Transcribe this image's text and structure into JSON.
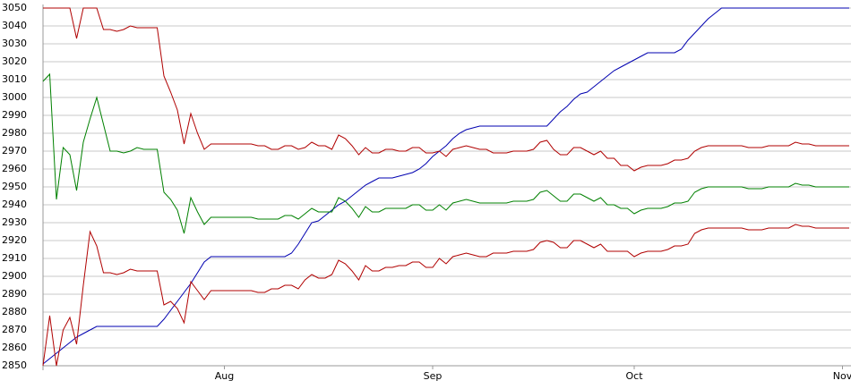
{
  "chart_data": {
    "type": "line",
    "categories": [
      null,
      null,
      null,
      null,
      null,
      null,
      null,
      null,
      null,
      null,
      null,
      null,
      null,
      null,
      null,
      null,
      null,
      null,
      null,
      null,
      null,
      null,
      null,
      null,
      null,
      null,
      null,
      "Aug",
      null,
      null,
      null,
      null,
      null,
      null,
      null,
      null,
      null,
      null,
      null,
      null,
      null,
      null,
      null,
      null,
      null,
      null,
      null,
      null,
      null,
      null,
      null,
      null,
      null,
      null,
      null,
      null,
      null,
      null,
      "Sep",
      null,
      null,
      null,
      null,
      null,
      null,
      null,
      null,
      null,
      null,
      null,
      null,
      null,
      null,
      null,
      null,
      null,
      null,
      null,
      null,
      null,
      null,
      null,
      null,
      null,
      null,
      null,
      null,
      null,
      "Oct",
      null,
      null,
      null,
      null,
      null,
      null,
      null,
      null,
      null,
      null,
      null,
      null,
      null,
      null,
      null,
      null,
      null,
      null,
      null,
      null,
      null,
      null,
      null,
      null,
      null,
      null,
      null,
      null,
      null,
      null,
      "Nov",
      null
    ],
    "series": [
      {
        "color": "#0000b0",
        "values": [
          2851,
          2854,
          2857,
          2860,
          2863,
          2866,
          2868,
          2870,
          2872,
          2872,
          2872,
          2872,
          2872,
          2872,
          2872,
          2872,
          2872,
          2872,
          2876,
          2881,
          2886,
          2891,
          2896,
          2902,
          2908,
          2911,
          2911,
          2911,
          2911,
          2911,
          2911,
          2911,
          2911,
          2911,
          2911,
          2911,
          2911,
          2913,
          2918,
          2924,
          2930,
          2931,
          2934,
          2937,
          2940,
          2942,
          2945,
          2948,
          2951,
          2953,
          2955,
          2955,
          2955,
          2956,
          2957,
          2958,
          2960,
          2963,
          2967,
          2970,
          2973,
          2977,
          2980,
          2982,
          2983,
          2984,
          2984,
          2984,
          2984,
          2984,
          2984,
          2984,
          2984,
          2984,
          2984,
          2984,
          2988,
          2992,
          2995,
          2999,
          3002,
          3003,
          3006,
          3009,
          3012,
          3015,
          3017,
          3019,
          3021,
          3023,
          3025,
          3025,
          3025,
          3025,
          3025,
          3027,
          3032,
          3036,
          3040,
          3044,
          3047,
          3050,
          3050,
          3050,
          3050,
          3050,
          3050,
          3050,
          3050,
          3050,
          3050,
          3050,
          3050,
          3050,
          3050,
          3050,
          3050,
          3050,
          3050,
          3050,
          3050
        ]
      },
      {
        "color": "#b00000",
        "values": [
          3050,
          3050,
          3050,
          3050,
          3050,
          3033,
          3050,
          3050,
          3050,
          3038,
          3038,
          3037,
          3038,
          3040,
          3039,
          3039,
          3039,
          3039,
          3012,
          3003,
          2993,
          2974,
          2991,
          2980,
          2971,
          2974,
          2974,
          2974,
          2974,
          2974,
          2974,
          2974,
          2973,
          2973,
          2971,
          2971,
          2973,
          2973,
          2971,
          2972,
          2975,
          2973,
          2973,
          2971,
          2979,
          2977,
          2973,
          2968,
          2972,
          2969,
          2969,
          2971,
          2971,
          2970,
          2970,
          2972,
          2972,
          2969,
          2969,
          2970,
          2967,
          2971,
          2972,
          2973,
          2972,
          2971,
          2971,
          2969,
          2969,
          2969,
          2970,
          2970,
          2970,
          2971,
          2975,
          2976,
          2971,
          2968,
          2968,
          2972,
          2972,
          2970,
          2968,
          2970,
          2966,
          2966,
          2962,
          2962,
          2959,
          2961,
          2962,
          2962,
          2962,
          2963,
          2965,
          2965,
          2966,
          2970,
          2972,
          2973,
          2973,
          2973,
          2973,
          2973,
          2973,
          2972,
          2972,
          2972,
          2973,
          2973,
          2973,
          2973,
          2975,
          2974,
          2974,
          2973,
          2973,
          2973,
          2973,
          2973,
          2973
        ]
      },
      {
        "color": "#008000",
        "values": [
          3009,
          3013,
          2943,
          2972,
          2968,
          2948,
          2975,
          2988,
          3000,
          2985,
          2970,
          2970,
          2969,
          2970,
          2972,
          2971,
          2971,
          2971,
          2947,
          2943,
          2937,
          2924,
          2944,
          2936,
          2929,
          2933,
          2933,
          2933,
          2933,
          2933,
          2933,
          2933,
          2932,
          2932,
          2932,
          2932,
          2934,
          2934,
          2932,
          2935,
          2938,
          2936,
          2936,
          2936,
          2944,
          2942,
          2938,
          2933,
          2939,
          2936,
          2936,
          2938,
          2938,
          2938,
          2938,
          2940,
          2940,
          2937,
          2937,
          2940,
          2937,
          2941,
          2942,
          2943,
          2942,
          2941,
          2941,
          2941,
          2941,
          2941,
          2942,
          2942,
          2942,
          2943,
          2947,
          2948,
          2945,
          2942,
          2942,
          2946,
          2946,
          2944,
          2942,
          2944,
          2940,
          2940,
          2938,
          2938,
          2935,
          2937,
          2938,
          2938,
          2938,
          2939,
          2941,
          2941,
          2942,
          2947,
          2949,
          2950,
          2950,
          2950,
          2950,
          2950,
          2950,
          2949,
          2949,
          2949,
          2950,
          2950,
          2950,
          2950,
          2952,
          2951,
          2951,
          2950,
          2950,
          2950,
          2950,
          2950,
          2950
        ]
      },
      {
        "color": "#b00000",
        "values": [
          2850,
          2878,
          2850,
          2870,
          2877,
          2862,
          2895,
          2925,
          2917,
          2902,
          2902,
          2901,
          2902,
          2904,
          2903,
          2903,
          2903,
          2903,
          2884,
          2886,
          2882,
          2874,
          2897,
          2892,
          2887,
          2892,
          2892,
          2892,
          2892,
          2892,
          2892,
          2892,
          2891,
          2891,
          2893,
          2893,
          2895,
          2895,
          2893,
          2898,
          2901,
          2899,
          2899,
          2901,
          2909,
          2907,
          2903,
          2898,
          2906,
          2903,
          2903,
          2905,
          2905,
          2906,
          2906,
          2908,
          2908,
          2905,
          2905,
          2910,
          2907,
          2911,
          2912,
          2913,
          2912,
          2911,
          2911,
          2913,
          2913,
          2913,
          2914,
          2914,
          2914,
          2915,
          2919,
          2920,
          2919,
          2916,
          2916,
          2920,
          2920,
          2918,
          2916,
          2918,
          2914,
          2914,
          2914,
          2914,
          2911,
          2913,
          2914,
          2914,
          2914,
          2915,
          2917,
          2917,
          2918,
          2924,
          2926,
          2927,
          2927,
          2927,
          2927,
          2927,
          2927,
          2926,
          2926,
          2926,
          2927,
          2927,
          2927,
          2927,
          2929,
          2928,
          2928,
          2927,
          2927,
          2927,
          2927,
          2927,
          2927
        ]
      }
    ],
    "ylim": [
      2850,
      3050
    ],
    "yticks": [
      2850,
      2860,
      2870,
      2880,
      2890,
      2900,
      2910,
      2920,
      2930,
      2940,
      2950,
      2960,
      2970,
      2980,
      2990,
      3000,
      3010,
      3020,
      3030,
      3040,
      3050
    ],
    "grid": true
  }
}
